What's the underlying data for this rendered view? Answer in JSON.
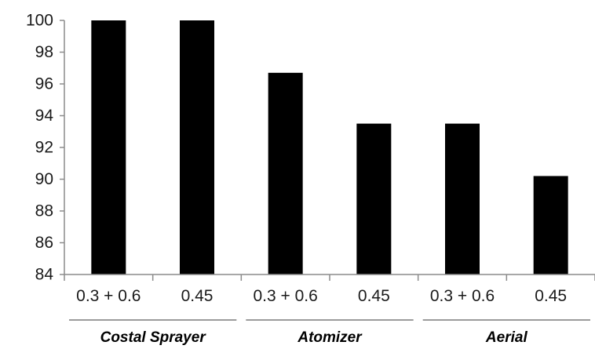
{
  "chart_data": {
    "type": "bar",
    "title": "",
    "xlabel": "",
    "ylabel": "",
    "ylim": [
      84,
      100
    ],
    "yticks": [
      84,
      86,
      88,
      90,
      92,
      94,
      96,
      98,
      100
    ],
    "yticks_text": [
      "84",
      "86",
      "88",
      "90",
      "92",
      "94",
      "96",
      "98",
      "100"
    ],
    "categories": [
      "0.3 + 0.6",
      "0.45",
      "0.3 + 0.6",
      "0.45",
      "0.3 + 0.6",
      "0.45"
    ],
    "values": [
      100,
      100,
      96.7,
      93.5,
      93.5,
      90.2
    ],
    "groups": [
      {
        "label": "Costal Sprayer",
        "categories": [
          0,
          1
        ]
      },
      {
        "label": "Atomizer",
        "categories": [
          2,
          3
        ]
      },
      {
        "label": "Aerial",
        "categories": [
          4,
          5
        ]
      }
    ],
    "grid": false,
    "legend": "none",
    "colors": {
      "bar": "#000000",
      "axis": "#8c8c8c"
    }
  }
}
